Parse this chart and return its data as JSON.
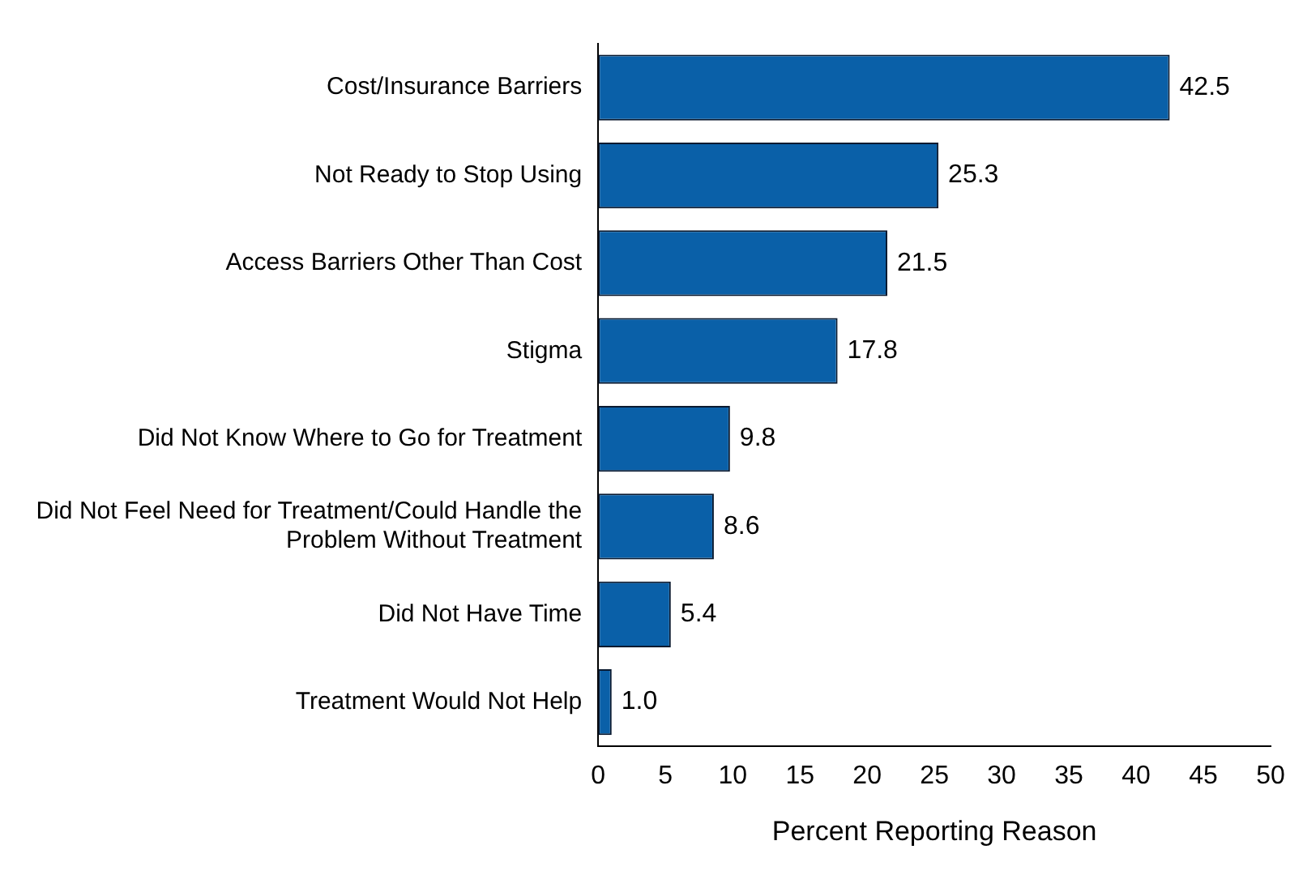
{
  "chart_data": {
    "type": "bar",
    "orientation": "horizontal",
    "xlabel": "Percent Reporting Reason",
    "categories": [
      "Cost/Insurance Barriers",
      "Not Ready to Stop Using",
      "Access Barriers Other Than Cost",
      "Stigma",
      "Did Not Know Where to Go for Treatment",
      "Did Not Feel Need for Treatment/Could Handle the Problem Without Treatment",
      "Did Not Have Time",
      "Treatment Would Not Help"
    ],
    "values": [
      42.5,
      25.3,
      21.5,
      17.8,
      9.8,
      8.6,
      5.4,
      1.0
    ],
    "value_labels": [
      "42.5",
      "25.3",
      "21.5",
      "17.8",
      "9.8",
      "8.6",
      "5.4",
      "1.0"
    ],
    "color": "#0a60a8",
    "xlim": [
      0,
      50
    ],
    "xticks": [
      0,
      5,
      10,
      15,
      20,
      25,
      30,
      35,
      40,
      45,
      50
    ],
    "grid": false,
    "legend": false
  }
}
